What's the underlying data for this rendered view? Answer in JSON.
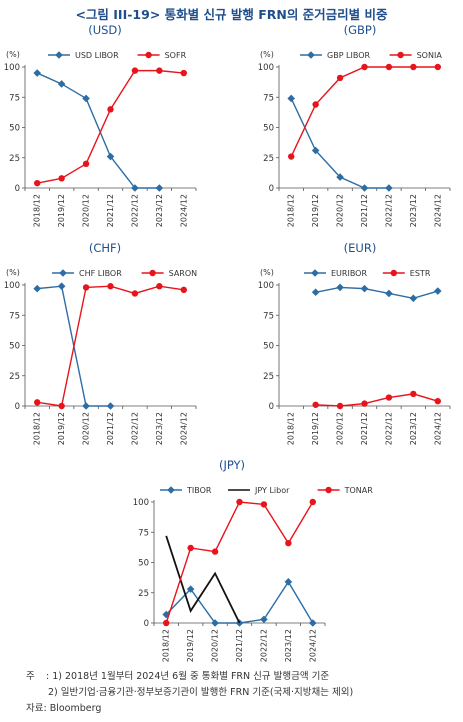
{
  "figure_title": "<그림 III-19> 통화별 신규 발행 FRN의 준거금리별 비중",
  "notes": {
    "label": "주",
    "lines": [
      ": 1) 2018년 1월부터 2024년 6월 중 통화별 FRN 신규 발행금액 기준",
      "2) 일반기업·금융기관·정부보증기관이 발행한 FRN 기준(국제·지방채는 제외)"
    ],
    "source": "자료: Bloomberg"
  },
  "colors": {
    "blue": "#2e6da4",
    "red": "#e8141c",
    "black": "#111111",
    "title": "#1f4e8c"
  },
  "chart_data": [
    {
      "type": "line",
      "title": "(USD)",
      "ylabel": "(%)",
      "categories": [
        "2018/12",
        "2019/12",
        "2020/12",
        "2021/12",
        "2022/12",
        "2023/12",
        "2024/12"
      ],
      "ylim": [
        0,
        100
      ],
      "yticks": [
        0,
        25,
        50,
        75,
        100
      ],
      "grid": false,
      "legend": "top",
      "series": [
        {
          "name": "USD LIBOR",
          "color": "#2e6da4",
          "marker": "diamond",
          "values": [
            95,
            86,
            74,
            26,
            0,
            0,
            null
          ]
        },
        {
          "name": "SOFR",
          "color": "#e8141c",
          "marker": "circle",
          "values": [
            4,
            8,
            20,
            65,
            97,
            97,
            95
          ]
        }
      ]
    },
    {
      "type": "line",
      "title": "(GBP)",
      "ylabel": "(%)",
      "categories": [
        "2018/12",
        "2019/12",
        "2020/12",
        "2021/12",
        "2022/12",
        "2023/12",
        "2024/12"
      ],
      "ylim": [
        0,
        100
      ],
      "yticks": [
        0,
        25,
        50,
        75,
        100
      ],
      "grid": false,
      "legend": "top",
      "series": [
        {
          "name": "GBP LIBOR",
          "color": "#2e6da4",
          "marker": "diamond",
          "values": [
            74,
            31,
            9,
            0,
            0,
            null,
            null
          ]
        },
        {
          "name": "SONIA",
          "color": "#e8141c",
          "marker": "circle",
          "values": [
            26,
            69,
            91,
            100,
            100,
            100,
            100
          ]
        }
      ]
    },
    {
      "type": "line",
      "title": "(CHF)",
      "ylabel": "(%)",
      "categories": [
        "2018/12",
        "2019/12",
        "2020/12",
        "2021/12",
        "2022/12",
        "2023/12",
        "2024/12"
      ],
      "ylim": [
        0,
        100
      ],
      "yticks": [
        0,
        25,
        50,
        75,
        100
      ],
      "grid": false,
      "legend": "top",
      "series": [
        {
          "name": "CHF LIBOR",
          "color": "#2e6da4",
          "marker": "diamond",
          "values": [
            97,
            99,
            0,
            0,
            null,
            null,
            null
          ]
        },
        {
          "name": "SARON",
          "color": "#e8141c",
          "marker": "circle",
          "values": [
            3,
            0,
            98,
            99,
            93,
            99,
            96
          ]
        }
      ]
    },
    {
      "type": "line",
      "title": "(EUR)",
      "ylabel": "(%)",
      "categories": [
        "2018/12",
        "2019/12",
        "2020/12",
        "2021/12",
        "2022/12",
        "2023/12",
        "2024/12"
      ],
      "ylim": [
        0,
        100
      ],
      "yticks": [
        0,
        25,
        50,
        75,
        100
      ],
      "grid": false,
      "legend": "top",
      "series": [
        {
          "name": "EURIBOR",
          "color": "#2e6da4",
          "marker": "diamond",
          "values": [
            null,
            94,
            98,
            97,
            93,
            89,
            95
          ]
        },
        {
          "name": "ESTR",
          "color": "#e8141c",
          "marker": "circle",
          "values": [
            null,
            1,
            0,
            2,
            7,
            10,
            4
          ]
        }
      ]
    },
    {
      "type": "line",
      "title": "(JPY)",
      "ylabel": "",
      "categories": [
        "2018/12",
        "2019/12",
        "2020/12",
        "2021/12",
        "2022/12",
        "2023/12",
        "2024/12"
      ],
      "ylim": [
        0,
        100
      ],
      "yticks": [
        0,
        25,
        50,
        75,
        100
      ],
      "grid": false,
      "legend": "top",
      "series": [
        {
          "name": "TIBOR",
          "color": "#2e6da4",
          "marker": "diamond",
          "values": [
            7,
            28,
            0,
            0,
            3,
            34,
            0
          ]
        },
        {
          "name": "JPY Libor",
          "color": "#111111",
          "marker": "none",
          "values": [
            72,
            10,
            41,
            0,
            null,
            null,
            null
          ]
        },
        {
          "name": "TONAR",
          "color": "#e8141c",
          "marker": "circle",
          "values": [
            0,
            62,
            59,
            100,
            98,
            66,
            100
          ]
        }
      ]
    }
  ]
}
